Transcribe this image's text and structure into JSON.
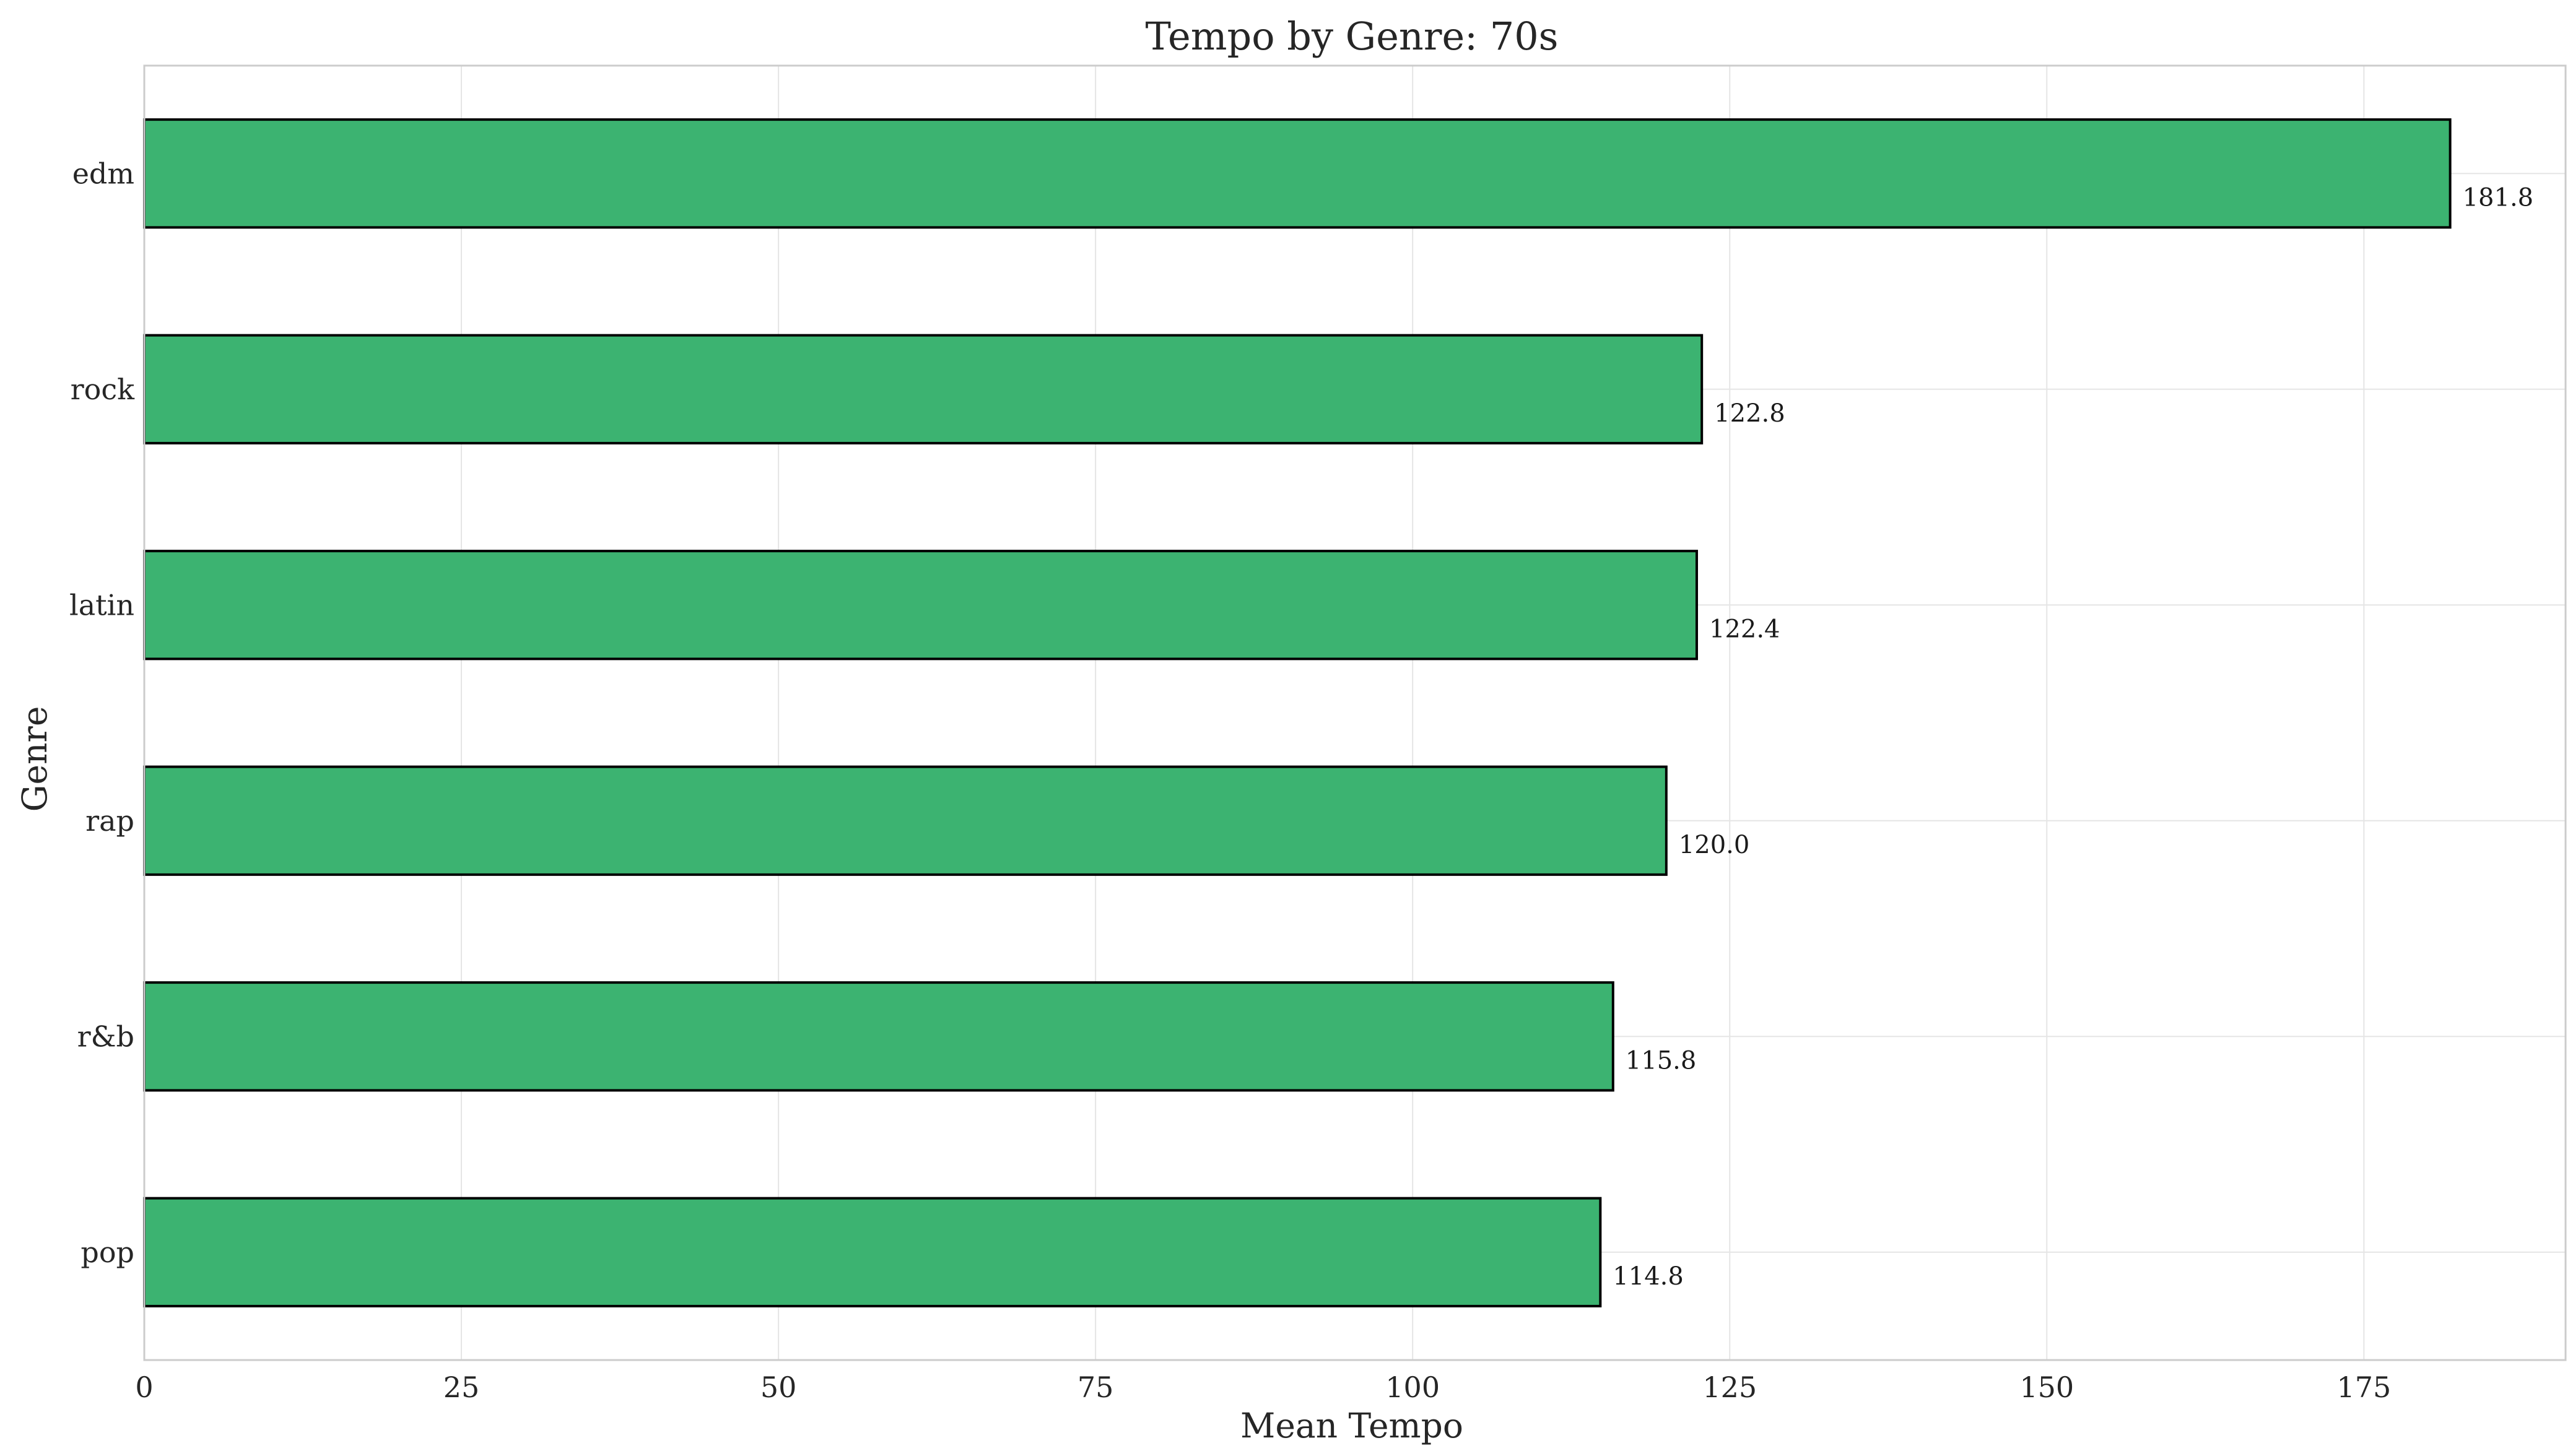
{
  "chart_data": {
    "type": "bar",
    "orientation": "horizontal",
    "title": "Tempo by Genre: 70s",
    "xlabel": "Mean Tempo",
    "ylabel": "Genre",
    "categories": [
      "edm",
      "rock",
      "latin",
      "rap",
      "r&b",
      "pop"
    ],
    "values": [
      181.8,
      122.8,
      122.4,
      120.0,
      115.8,
      114.8
    ],
    "value_labels": [
      "181.8",
      "122.8",
      "122.4",
      "120.0",
      "115.8",
      "114.8"
    ],
    "xlim": [
      0,
      190.9
    ],
    "xticks": [
      0,
      25,
      50,
      75,
      100,
      125,
      150,
      175
    ],
    "grid": true,
    "legend": "none",
    "colors": {
      "bar_fill": "#3cb371",
      "bar_edge": "#000000",
      "grid": "#e5e5e5",
      "spine": "#cccccc"
    }
  }
}
